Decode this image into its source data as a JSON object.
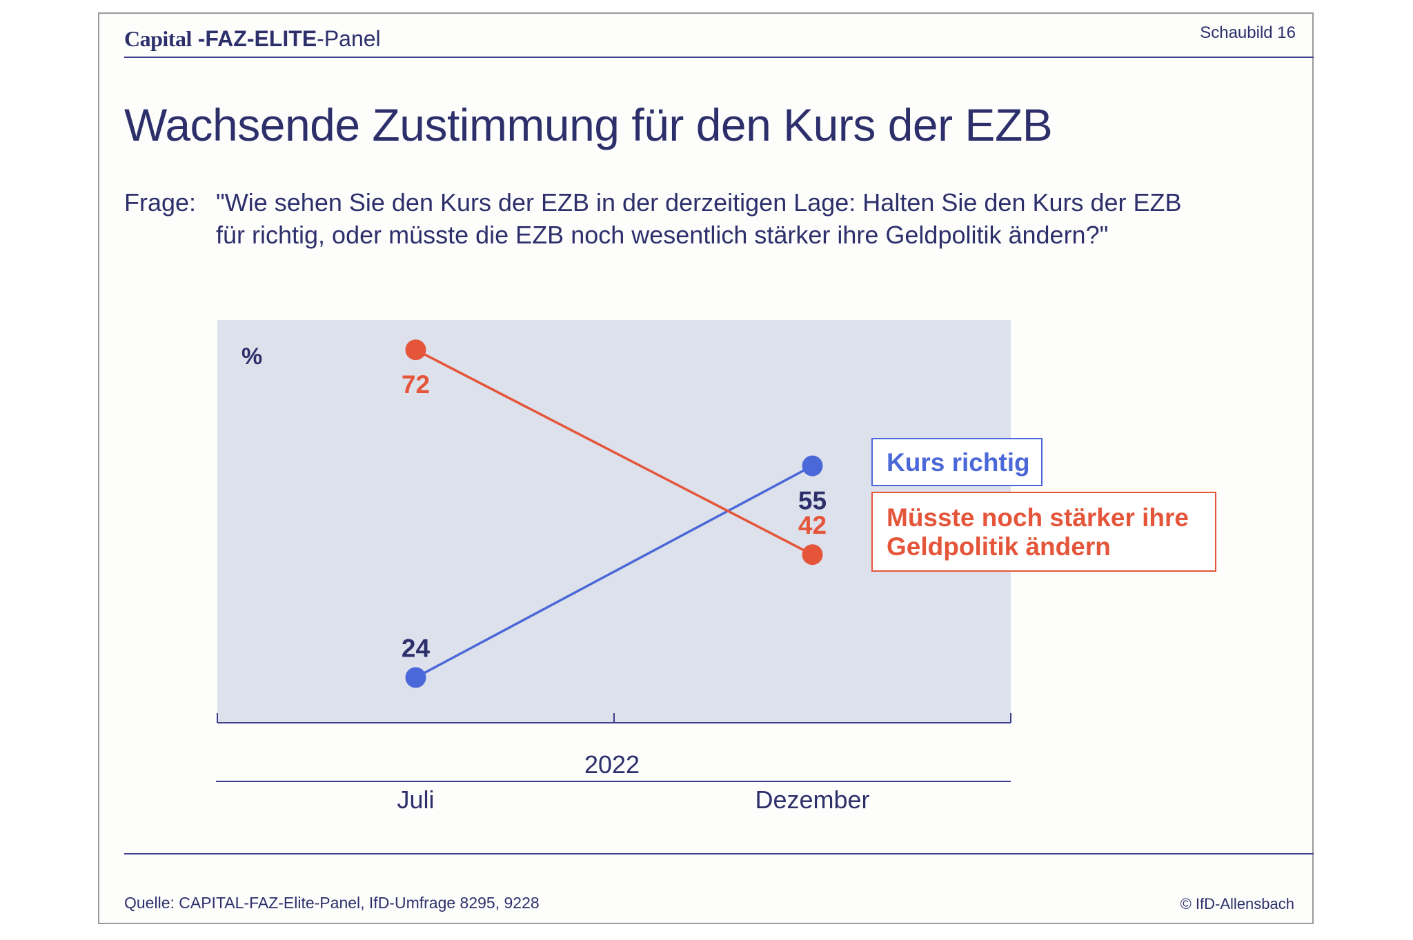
{
  "header": {
    "brand_capital": "Capital",
    "brand_faz_elite": " -FAZ-ELITE",
    "brand_panel": "-Panel",
    "sheet_number": "Schaubild 16"
  },
  "headline": "Wachsende Zustimmung für den Kurs der EZB",
  "question": {
    "label": "Frage:",
    "line1": "\"Wie sehen Sie den Kurs der EZB in der derzeitigen Lage: Halten Sie den Kurs der EZB",
    "line2": "für richtig, oder müsste die EZB noch wesentlich stärker ihre Geldpolitik ändern?\""
  },
  "chart_data": {
    "type": "line",
    "unit_label": "%",
    "year_label": "2022",
    "categories": [
      "Juli",
      "Dezember"
    ],
    "ylim": [
      0,
      100
    ],
    "grid": false,
    "series": [
      {
        "name": "Kurs richtig",
        "color": "#4b68d8",
        "values": [
          24,
          55
        ],
        "label_color": "#2d2f6b"
      },
      {
        "name": "Müsste noch stärker ihre Geldpolitik ändern",
        "color": "#e4553a",
        "values": [
          72,
          42
        ],
        "label_color": "#e4553a"
      }
    ],
    "plot_background": "#dde1ec"
  },
  "legend": {
    "blue_label": "Kurs richtig",
    "red_label": "Müsste noch stärker ihre Geldpolitik ändern"
  },
  "footer": {
    "source": "Quelle: CAPITAL-FAZ-Elite-Panel, IfD-Umfrage 8295, 9228",
    "copyright": "© IfD-Allensbach"
  }
}
